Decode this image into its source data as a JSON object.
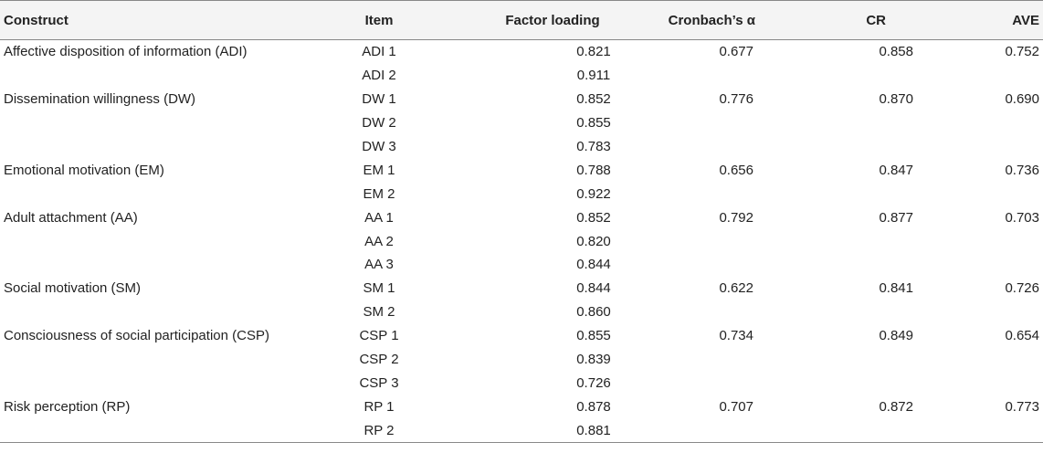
{
  "table": {
    "headers": {
      "construct": "Construct",
      "item": "Item",
      "factor_loading": "Factor loading",
      "cronbach_alpha": "Cronbach’s α",
      "cr": "CR",
      "ave": "AVE"
    },
    "rows": [
      {
        "construct": "Affective disposition of information (ADI)",
        "item": "ADI 1",
        "factor_loading": "0.821",
        "cronbach_alpha": "0.677",
        "cr": "0.858",
        "ave": "0.752"
      },
      {
        "construct": "",
        "item": "ADI 2",
        "factor_loading": "0.911",
        "cronbach_alpha": "",
        "cr": "",
        "ave": ""
      },
      {
        "construct": "Dissemination willingness (DW)",
        "item": "DW 1",
        "factor_loading": "0.852",
        "cronbach_alpha": "0.776",
        "cr": "0.870",
        "ave": "0.690"
      },
      {
        "construct": "",
        "item": "DW 2",
        "factor_loading": "0.855",
        "cronbach_alpha": "",
        "cr": "",
        "ave": ""
      },
      {
        "construct": "",
        "item": "DW 3",
        "factor_loading": "0.783",
        "cronbach_alpha": "",
        "cr": "",
        "ave": ""
      },
      {
        "construct": "Emotional motivation (EM)",
        "item": "EM 1",
        "factor_loading": "0.788",
        "cronbach_alpha": "0.656",
        "cr": "0.847",
        "ave": "0.736"
      },
      {
        "construct": "",
        "item": "EM 2",
        "factor_loading": "0.922",
        "cronbach_alpha": "",
        "cr": "",
        "ave": ""
      },
      {
        "construct": "Adult attachment (AA)",
        "item": "AA 1",
        "factor_loading": "0.852",
        "cronbach_alpha": "0.792",
        "cr": "0.877",
        "ave": "0.703"
      },
      {
        "construct": "",
        "item": "AA 2",
        "factor_loading": "0.820",
        "cronbach_alpha": "",
        "cr": "",
        "ave": ""
      },
      {
        "construct": "",
        "item": "AA 3",
        "factor_loading": "0.844",
        "cronbach_alpha": "",
        "cr": "",
        "ave": ""
      },
      {
        "construct": "Social motivation (SM)",
        "item": "SM 1",
        "factor_loading": "0.844",
        "cronbach_alpha": "0.622",
        "cr": "0.841",
        "ave": "0.726"
      },
      {
        "construct": "",
        "item": "SM 2",
        "factor_loading": "0.860",
        "cronbach_alpha": "",
        "cr": "",
        "ave": ""
      },
      {
        "construct": "Consciousness of social participation (CSP)",
        "item": "CSP 1",
        "factor_loading": "0.855",
        "cronbach_alpha": "0.734",
        "cr": "0.849",
        "ave": "0.654"
      },
      {
        "construct": "",
        "item": "CSP 2",
        "factor_loading": "0.839",
        "cronbach_alpha": "",
        "cr": "",
        "ave": ""
      },
      {
        "construct": "",
        "item": "CSP 3",
        "factor_loading": "0.726",
        "cronbach_alpha": "",
        "cr": "",
        "ave": ""
      },
      {
        "construct": "Risk perception (RP)",
        "item": "RP 1",
        "factor_loading": "0.878",
        "cronbach_alpha": "0.707",
        "cr": "0.872",
        "ave": "0.773"
      },
      {
        "construct": "",
        "item": "RP 2",
        "factor_loading": "0.881",
        "cronbach_alpha": "",
        "cr": "",
        "ave": ""
      }
    ]
  }
}
